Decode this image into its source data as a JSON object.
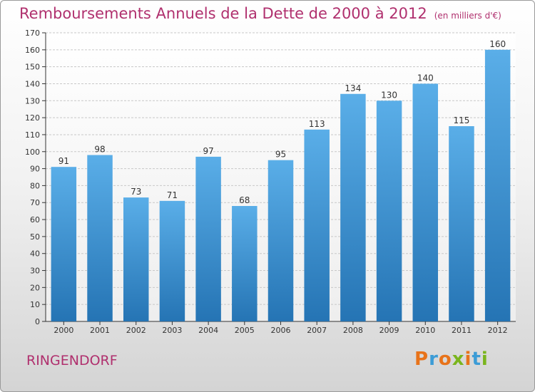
{
  "header": {
    "title": "Remboursements Annuels de la Dette de 2000 à 2012",
    "unit": "(en milliers d'€)"
  },
  "footer": {
    "commune": "RINGENDORF",
    "logo_text": "Proxiti"
  },
  "colors": {
    "title": "#b0306e",
    "bar_light": "#5aaee8",
    "bar_dark": "#2574b4",
    "grid": "#c8c8c8",
    "axis": "#333333"
  },
  "chart_data": {
    "type": "bar",
    "categories": [
      "2000",
      "2001",
      "2002",
      "2003",
      "2004",
      "2005",
      "2006",
      "2007",
      "2008",
      "2009",
      "2010",
      "2011",
      "2012"
    ],
    "values": [
      91,
      98,
      73,
      71,
      97,
      68,
      95,
      113,
      134,
      130,
      140,
      115,
      160
    ],
    "ylim": [
      0,
      170
    ],
    "ytick_step": 10,
    "grid": true,
    "data_labels": true
  }
}
